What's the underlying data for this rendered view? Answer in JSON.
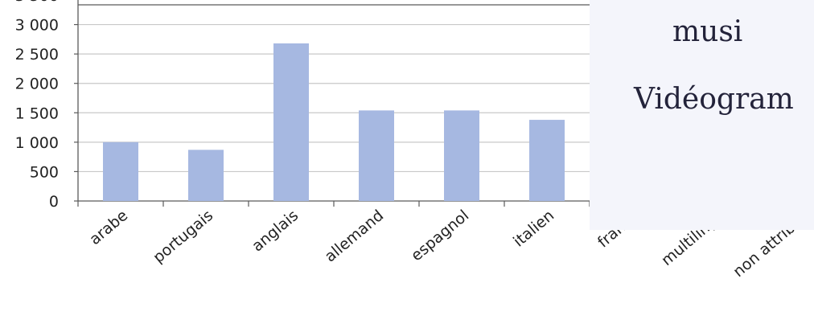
{
  "chart_data": {
    "type": "bar",
    "categories": [
      "arabe",
      "portugais",
      "anglais",
      "allemand",
      "espagnol",
      "italien",
      "français",
      "multilingue",
      "non attribué"
    ],
    "visible_category_labels": [
      "arabe",
      "portugais",
      "anglais",
      "allemand",
      "espagnol",
      "italien",
      "frança",
      "multilingu",
      "non attribué"
    ],
    "values": [
      1000,
      870,
      2680,
      1540,
      1540,
      1380,
      null,
      null,
      null
    ],
    "ylim": [
      0,
      3500
    ],
    "yticks": [
      0,
      500,
      1000,
      1500,
      2000,
      2500,
      3000
    ],
    "ytick_labels": [
      "0",
      "500",
      "1 000",
      "1 500",
      "2 000",
      "2 500",
      "3 000"
    ],
    "grid": true,
    "bar_color": "#a6b8e1",
    "grid_color": "#c8c8c8",
    "axis_color": "#5a5a5a",
    "title": "",
    "xlabel": "",
    "ylabel": ""
  },
  "overlay": {
    "line_1": "musi",
    "line_2": "Vidéogram",
    "background": "#f4f5fb"
  }
}
